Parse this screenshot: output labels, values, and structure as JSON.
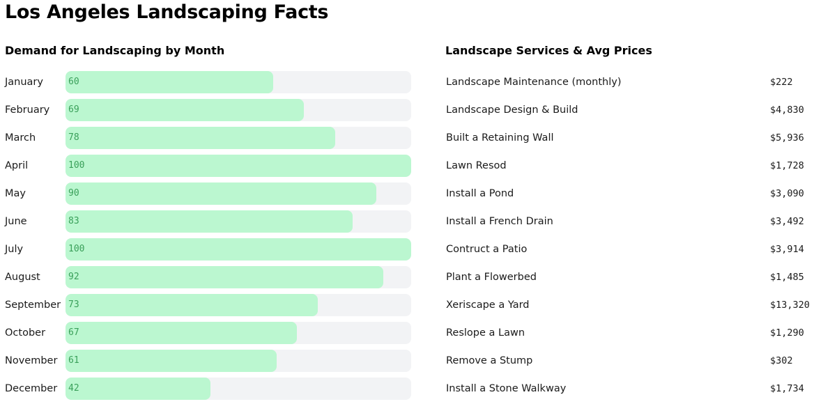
{
  "page": {
    "title": "Los Angeles Landscaping Facts"
  },
  "colors": {
    "bar_fill": "#bbf7d0",
    "bar_track": "#f2f3f5",
    "bar_value_text": "#3aa05a"
  },
  "chart_data": {
    "type": "bar",
    "orientation": "horizontal",
    "title": "Demand for Landscaping by Month",
    "xlabel": "",
    "ylabel": "",
    "xlim": [
      0,
      100
    ],
    "grid": false,
    "categories": [
      "January",
      "February",
      "March",
      "April",
      "May",
      "June",
      "July",
      "August",
      "September",
      "October",
      "November",
      "December"
    ],
    "values": [
      60,
      69,
      78,
      100,
      90,
      83,
      100,
      92,
      73,
      67,
      61,
      42
    ]
  },
  "services": {
    "title": "Landscape Services & Avg Prices",
    "items": [
      {
        "name": "Landscape Maintenance (monthly)",
        "price": "$222"
      },
      {
        "name": "Landscape Design & Build",
        "price": "$4,830"
      },
      {
        "name": "Built a Retaining Wall",
        "price": "$5,936"
      },
      {
        "name": "Lawn Resod",
        "price": "$1,728"
      },
      {
        "name": "Install a Pond",
        "price": "$3,090"
      },
      {
        "name": "Install a French Drain",
        "price": "$3,492"
      },
      {
        "name": "Contruct a Patio",
        "price": "$3,914"
      },
      {
        "name": "Plant a Flowerbed",
        "price": "$1,485"
      },
      {
        "name": "Xeriscape a Yard",
        "price": "$13,320"
      },
      {
        "name": "Reslope a Lawn",
        "price": "$1,290"
      },
      {
        "name": "Remove a Stump",
        "price": "$302"
      },
      {
        "name": "Install a Stone Walkway",
        "price": "$1,734"
      }
    ]
  }
}
